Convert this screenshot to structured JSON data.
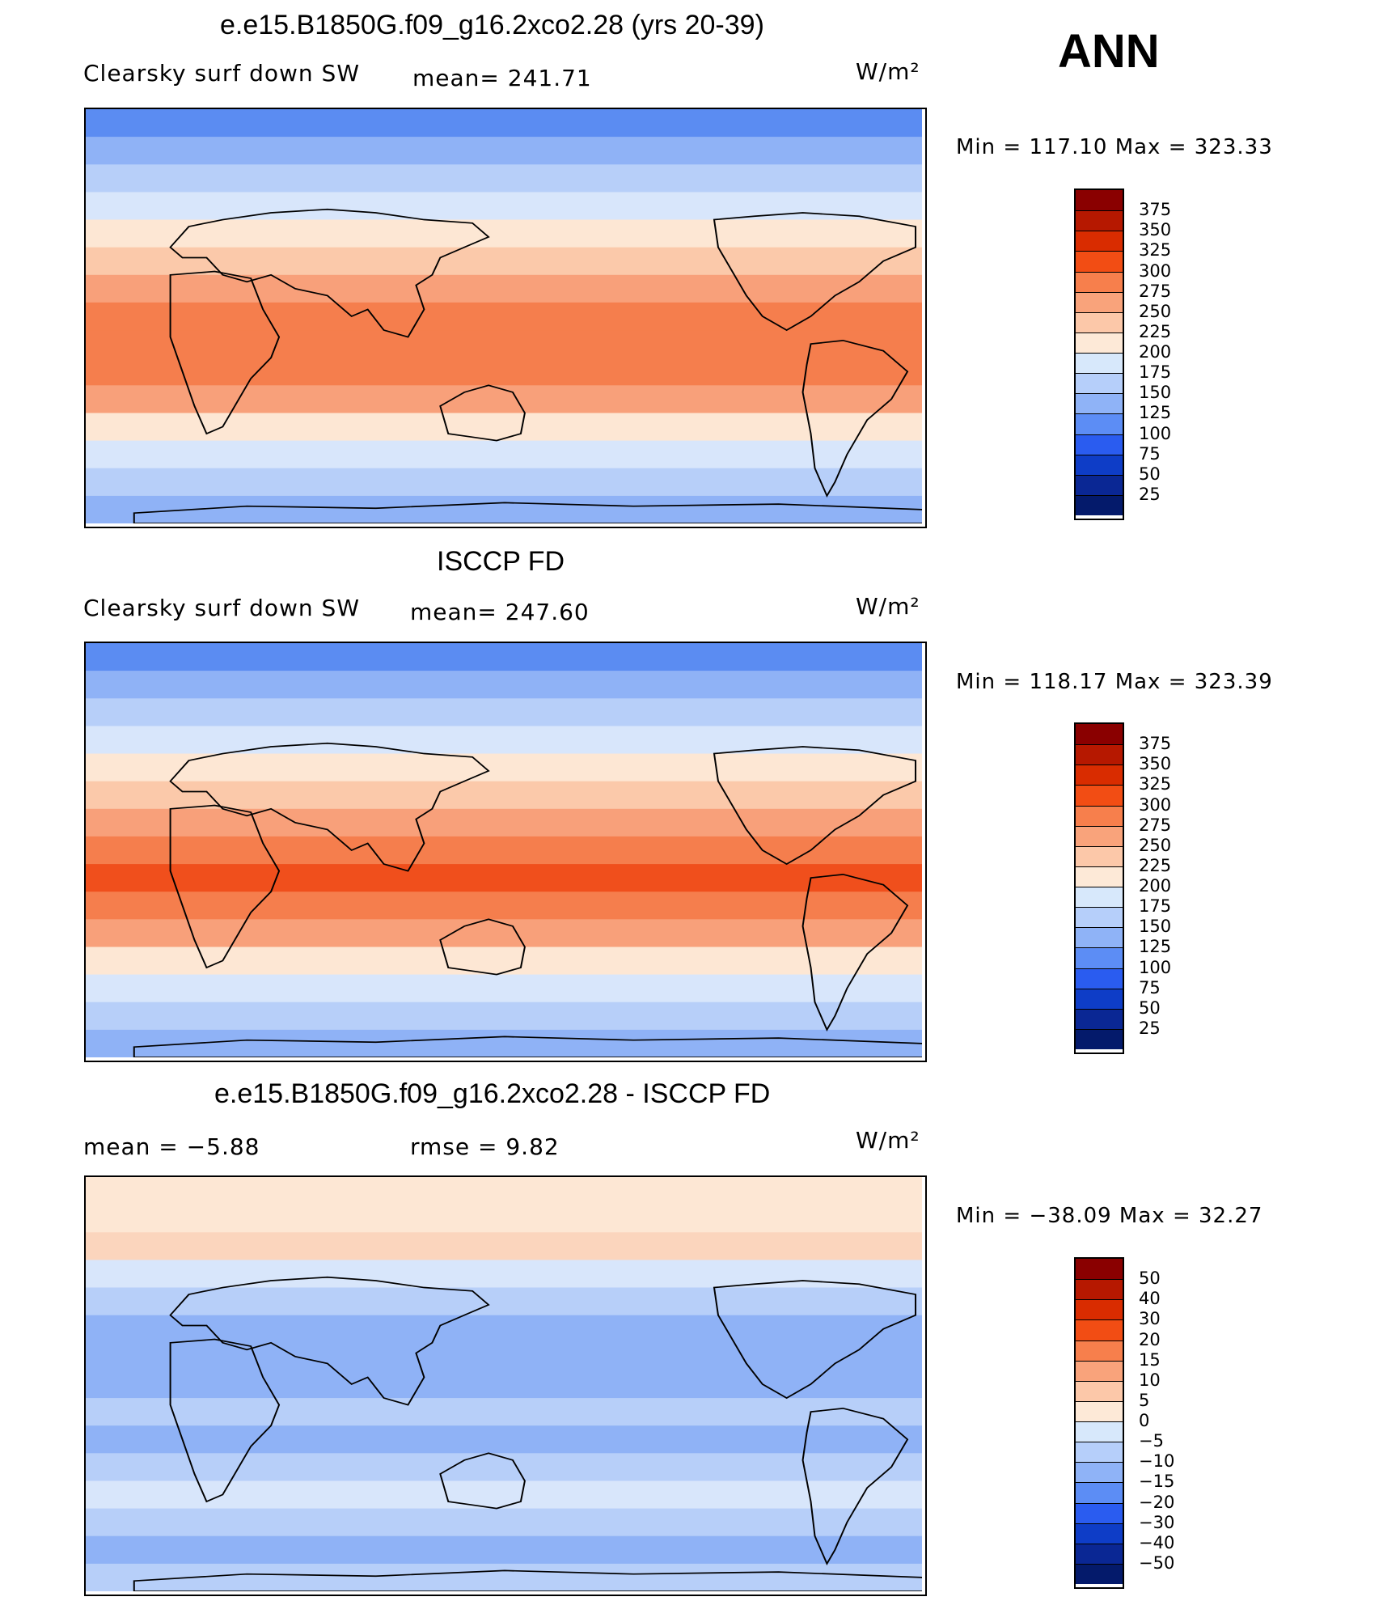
{
  "season": "ANN",
  "units": "W/m²",
  "panels": [
    {
      "title": "e.e15.B1850G.f09_g16.2xco2.28 (yrs 20-39)",
      "left_label": "Clearsky surf down SW",
      "stat_label": "mean= 241.71",
      "units": "W/m²",
      "minmax": "Min = 117.10 Max = 323.33",
      "colorbar": {
        "labels": [
          "375",
          "350",
          "325",
          "300",
          "275",
          "250",
          "225",
          "200",
          "175",
          "150",
          "125",
          "100",
          "75",
          "50",
          "25"
        ],
        "colors": [
          "#8a0000",
          "#b61800",
          "#d92c00",
          "#f24d14",
          "#f77f4c",
          "#f9a37b",
          "#fcc8a9",
          "#fde9d7",
          "#d7e8fb",
          "#b6cffa",
          "#8fb3f7",
          "#5c8df5",
          "#2a5cf0",
          "#0e3dc7",
          "#0a2794",
          "#041a6b"
        ]
      },
      "bands": [
        "#5b8cf2",
        "#8fb2f6",
        "#b7cff9",
        "#d8e6fb",
        "#fde7d4",
        "#fbc9aa",
        "#f8a07a",
        "#f57e4d",
        "#f57e4d",
        "#f57e4d",
        "#f8a07a",
        "#fde7d4",
        "#d8e6fb",
        "#b7cff9",
        "#8fb2f6"
      ]
    },
    {
      "title": "ISCCP FD",
      "left_label": "Clearsky surf down SW",
      "stat_label": "mean= 247.60",
      "units": "W/m²",
      "minmax": "Min = 118.17 Max = 323.39",
      "colorbar": {
        "labels": [
          "375",
          "350",
          "325",
          "300",
          "275",
          "250",
          "225",
          "200",
          "175",
          "150",
          "125",
          "100",
          "75",
          "50",
          "25"
        ],
        "colors": [
          "#8a0000",
          "#b61800",
          "#d92c00",
          "#f24d14",
          "#f77f4c",
          "#f9a37b",
          "#fcc8a9",
          "#fde9d7",
          "#d7e8fb",
          "#b6cffa",
          "#8fb3f7",
          "#5c8df5",
          "#2a5cf0",
          "#0e3dc7",
          "#0a2794",
          "#041a6b"
        ]
      },
      "bands": [
        "#5b8cf2",
        "#8fb2f6",
        "#b7cff9",
        "#d8e6fb",
        "#fde7d4",
        "#fbc9aa",
        "#f8a07a",
        "#f57e4d",
        "#f04f1c",
        "#f57e4d",
        "#f8a07a",
        "#fde7d4",
        "#d8e6fb",
        "#b7cff9",
        "#8fb2f6"
      ]
    },
    {
      "title": "e.e15.B1850G.f09_g16.2xco2.28 - ISCCP FD",
      "left_label": "mean =   −5.88",
      "stat_label": "rmse =    9.82",
      "units": "W/m²",
      "minmax": "Min = −38.09 Max =   32.27",
      "colorbar": {
        "labels": [
          "50",
          "40",
          "30",
          "20",
          "15",
          "10",
          "5",
          "0",
          "−5",
          "−10",
          "−15",
          "−20",
          "−30",
          "−40",
          "−50"
        ],
        "colors": [
          "#8a0000",
          "#b61800",
          "#d92c00",
          "#f24d14",
          "#f77f4c",
          "#f9a37b",
          "#fcc8a9",
          "#fde9d7",
          "#d7e8fb",
          "#b6cffa",
          "#8fb3f7",
          "#5c8df5",
          "#2a5cf0",
          "#0e3dc7",
          "#0a2794",
          "#041a6b"
        ]
      },
      "bands": [
        "#fde7d4",
        "#fde7d4",
        "#fbd5bd",
        "#d8e6fb",
        "#b7cff9",
        "#8fb2f6",
        "#8fb2f6",
        "#8fb2f6",
        "#b7cff9",
        "#8fb2f6",
        "#b7cff9",
        "#d8e6fb",
        "#b7cff9",
        "#8fb2f6",
        "#b7cff9"
      ]
    }
  ]
}
